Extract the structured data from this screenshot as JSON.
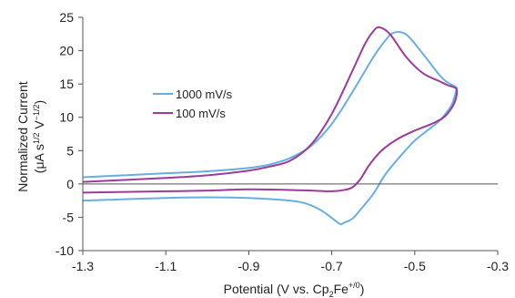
{
  "chart_data": {
    "type": "line",
    "title": "",
    "xlabel": {
      "main": "Potential (V vs. Cp",
      "sub1": "2",
      "mid": "Fe",
      "sup": "+/0",
      "end": ")"
    },
    "ylabel": {
      "line1": "Normalized Current",
      "line2_a": "(μA s",
      "line2_sup1": "1/2",
      "line2_b": " V",
      "line2_sup2": "−1/2",
      "line2_c": ")"
    },
    "xlim": [
      -1.3,
      -0.3
    ],
    "ylim": [
      -10,
      25
    ],
    "xticks": [
      -1.3,
      -1.1,
      -0.9,
      -0.7,
      -0.5,
      -0.3
    ],
    "xtick_labels": [
      "-1.3",
      "-1.1",
      "-0.9",
      "-0.7",
      "-0.5",
      "-0.3"
    ],
    "yticks": [
      -10,
      -5,
      0,
      5,
      10,
      15,
      20,
      25
    ],
    "ytick_labels": [
      "-10",
      "-5",
      "0",
      "5",
      "10",
      "15",
      "20",
      "25"
    ],
    "grid": false,
    "legend_position": "center-left",
    "series": [
      {
        "name": "1000 mV/s",
        "color": "#6aaee0",
        "x": [
          -1.3,
          -1.2,
          -1.1,
          -1.0,
          -0.9,
          -0.85,
          -0.8,
          -0.75,
          -0.7,
          -0.65,
          -0.6,
          -0.57,
          -0.55,
          -0.52,
          -0.48,
          -0.44,
          -0.42,
          -0.4,
          -0.4,
          -0.41,
          -0.42,
          -0.44,
          -0.47,
          -0.5,
          -0.53,
          -0.57,
          -0.6,
          -0.63,
          -0.65,
          -0.67,
          -0.68,
          -0.7,
          -0.73,
          -0.77,
          -0.82,
          -0.9,
          -1.0,
          -1.1,
          -1.2,
          -1.3
        ],
        "y": [
          1.0,
          1.3,
          1.6,
          1.9,
          2.4,
          2.9,
          3.9,
          5.7,
          9.0,
          13.8,
          19.0,
          21.6,
          22.7,
          22.4,
          19.5,
          16.3,
          15.2,
          14.5,
          14.0,
          12.0,
          11.0,
          9.5,
          8.0,
          6.5,
          4.5,
          1.5,
          -1.5,
          -3.8,
          -5.2,
          -5.8,
          -6.0,
          -5.1,
          -3.8,
          -2.8,
          -2.4,
          -2.1,
          -2.0,
          -2.1,
          -2.3,
          -2.5
        ]
      },
      {
        "name": "100 mV/s",
        "color": "#9c3c97",
        "x": [
          -1.3,
          -1.2,
          -1.1,
          -1.0,
          -0.9,
          -0.85,
          -0.8,
          -0.75,
          -0.7,
          -0.65,
          -0.62,
          -0.6,
          -0.585,
          -0.56,
          -0.52,
          -0.48,
          -0.44,
          -0.42,
          -0.4,
          -0.4,
          -0.41,
          -0.43,
          -0.46,
          -0.5,
          -0.54,
          -0.58,
          -0.61,
          -0.63,
          -0.65,
          -0.67,
          -0.7,
          -0.75,
          -0.8,
          -0.9,
          -1.0,
          -1.1,
          -1.2,
          -1.3
        ],
        "y": [
          0.3,
          0.6,
          0.9,
          1.3,
          2.0,
          2.6,
          3.5,
          5.9,
          10.5,
          17.0,
          21.0,
          22.9,
          23.5,
          22.5,
          19.0,
          16.6,
          15.4,
          14.8,
          14.3,
          13.0,
          11.5,
          10.0,
          9.0,
          8.0,
          6.8,
          5.0,
          2.8,
          0.8,
          -0.5,
          -0.9,
          -1.1,
          -1.0,
          -0.9,
          -0.8,
          -1.0,
          -1.1,
          -1.2,
          -1.3
        ]
      }
    ]
  }
}
